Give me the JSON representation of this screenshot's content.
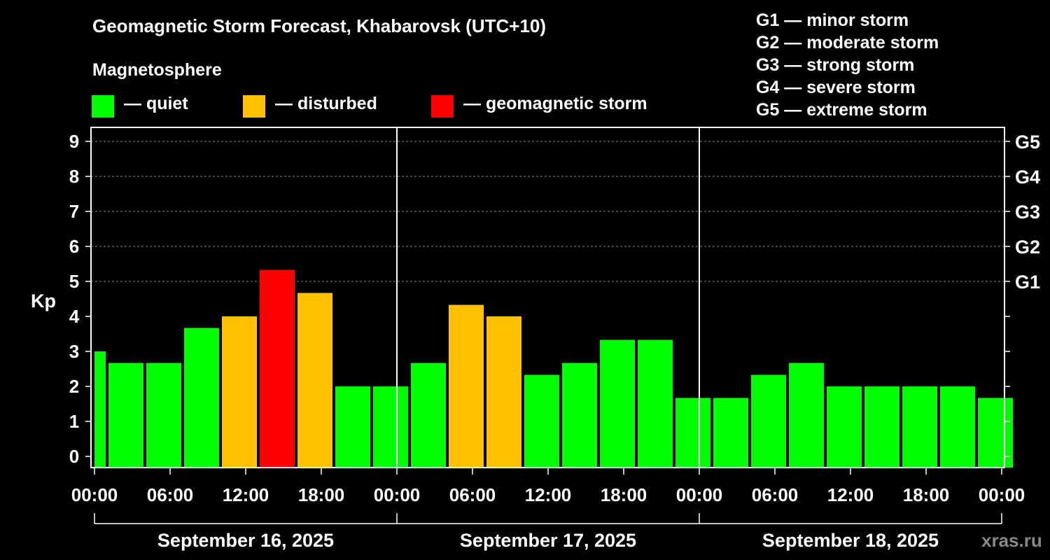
{
  "header": {
    "title": "Geomagnetic Storm Forecast, Khabarovsk (UTC+10)",
    "magnetosphere_label": "Magnetosphere"
  },
  "legend": [
    {
      "label": "— quiet",
      "color": "#00ff00"
    },
    {
      "label": "— disturbed",
      "color": "#ffc000"
    },
    {
      "label": "— geomagnetic storm",
      "color": "#ff0000"
    }
  ],
  "storm_scale": [
    "G1 — minor storm",
    "G2 — moderate storm",
    "G3 — strong storm",
    "G4 — severe storm",
    "G5 — extreme storm"
  ],
  "watermark": "xras.ru",
  "chart_data": {
    "type": "bar",
    "ylabel": "Kp",
    "ylim": [
      0,
      9
    ],
    "y_ticks": [
      "0",
      "1",
      "2",
      "3",
      "4",
      "5",
      "6",
      "7",
      "8",
      "9"
    ],
    "right_axis_labels": [
      {
        "kp": 5,
        "label": "G1"
      },
      {
        "kp": 6,
        "label": "G2"
      },
      {
        "kp": 7,
        "label": "G3"
      },
      {
        "kp": 8,
        "label": "G4"
      },
      {
        "kp": 9,
        "label": "G5"
      }
    ],
    "x_tick_labels": [
      "00:00",
      "06:00",
      "12:00",
      "18:00",
      "00:00",
      "06:00",
      "12:00",
      "18:00",
      "00:00",
      "06:00",
      "12:00",
      "18:00",
      "00:00"
    ],
    "days": [
      "September 16, 2025",
      "September 17, 2025",
      "September 18, 2025"
    ],
    "hours_per_bar": 3,
    "colors": {
      "quiet": "#00ff00",
      "disturbed": "#ffc000",
      "storm": "#ff0000"
    },
    "first_bar_partial": true,
    "bars": [
      {
        "kp": 3.0,
        "level": "quiet"
      },
      {
        "kp": 2.67,
        "level": "quiet"
      },
      {
        "kp": 2.67,
        "level": "quiet"
      },
      {
        "kp": 3.67,
        "level": "quiet"
      },
      {
        "kp": 4.0,
        "level": "disturbed"
      },
      {
        "kp": 5.33,
        "level": "storm"
      },
      {
        "kp": 4.67,
        "level": "disturbed"
      },
      {
        "kp": 2.0,
        "level": "quiet"
      },
      {
        "kp": 2.0,
        "level": "quiet"
      },
      {
        "kp": 2.67,
        "level": "quiet"
      },
      {
        "kp": 4.33,
        "level": "disturbed"
      },
      {
        "kp": 4.0,
        "level": "disturbed"
      },
      {
        "kp": 2.33,
        "level": "quiet"
      },
      {
        "kp": 2.67,
        "level": "quiet"
      },
      {
        "kp": 3.33,
        "level": "quiet"
      },
      {
        "kp": 3.33,
        "level": "quiet"
      },
      {
        "kp": 1.67,
        "level": "quiet"
      },
      {
        "kp": 1.67,
        "level": "quiet"
      },
      {
        "kp": 2.33,
        "level": "quiet"
      },
      {
        "kp": 2.67,
        "level": "quiet"
      },
      {
        "kp": 2.0,
        "level": "quiet"
      },
      {
        "kp": 2.0,
        "level": "quiet"
      },
      {
        "kp": 2.0,
        "level": "quiet"
      },
      {
        "kp": 2.0,
        "level": "quiet"
      },
      {
        "kp": 1.67,
        "level": "quiet"
      }
    ]
  }
}
